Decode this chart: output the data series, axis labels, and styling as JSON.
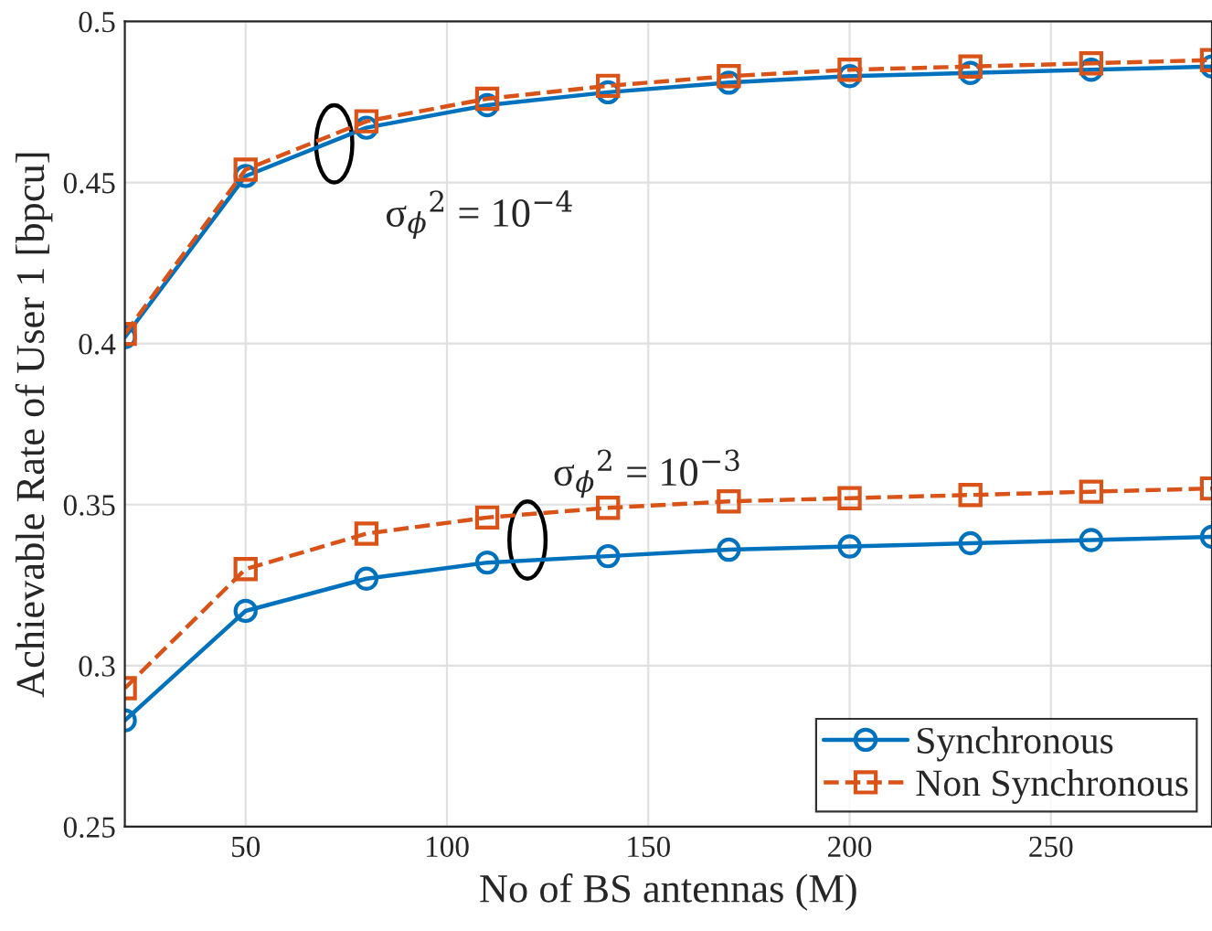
{
  "chart_data": {
    "type": "line",
    "xlabel": "No of BS antennas (M)",
    "ylabel": "Achievable Rate of User 1 [bpcu]",
    "x": [
      20,
      50,
      80,
      110,
      140,
      170,
      200,
      230,
      260,
      290
    ],
    "series": [
      {
        "name": "Synchronous",
        "color": "#0072bd",
        "marker": "circle",
        "line_style": "solid",
        "values": [
          0.402,
          0.452,
          0.467,
          0.474,
          0.478,
          0.481,
          0.483,
          0.484,
          0.485,
          0.486
        ]
      },
      {
        "name": "Non Synchronous",
        "color": "#d95319",
        "marker": "square",
        "line_style": "dashed",
        "values": [
          0.403,
          0.454,
          0.469,
          0.476,
          0.48,
          0.483,
          0.485,
          0.486,
          0.487,
          0.488
        ]
      },
      {
        "color": "#0072bd",
        "marker": "circle",
        "line_style": "solid",
        "values": [
          0.283,
          0.317,
          0.327,
          0.332,
          0.334,
          0.336,
          0.337,
          0.338,
          0.339,
          0.34
        ]
      },
      {
        "color": "#d95319",
        "marker": "square",
        "line_style": "dashed",
        "values": [
          0.293,
          0.33,
          0.341,
          0.346,
          0.349,
          0.351,
          0.352,
          0.353,
          0.354,
          0.355
        ]
      }
    ],
    "annotations": [
      {
        "text": "σ$_{ϕ}$$^{2}$ = 10$^{−4}$",
        "x": 72,
        "y": 0.462
      },
      {
        "text": "σ$_{ϕ}$$^{2}$ = 10$^{−3}$",
        "x": 120,
        "y": 0.339
      }
    ],
    "xlim": [
      20,
      290
    ],
    "xticks": [
      50,
      100,
      150,
      200,
      250
    ],
    "ylim": [
      0.25,
      0.5
    ],
    "yticks": [
      0.25,
      0.3,
      0.35,
      0.4,
      0.45,
      0.5
    ],
    "grid": true,
    "legend": "bottom right"
  }
}
